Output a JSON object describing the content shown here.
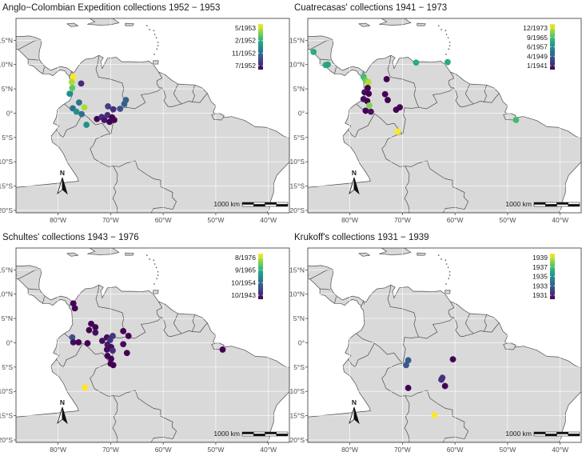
{
  "axes": {
    "lon_ticks": [
      "80°W",
      "70°W",
      "60°W",
      "50°W",
      "40°W"
    ],
    "lon_values": [
      -80,
      -70,
      -60,
      -50,
      -40
    ],
    "lat_ticks": [
      "15°N",
      "10°N",
      "5°N",
      "0°",
      "5°S",
      "10°S",
      "15°S",
      "20°S"
    ],
    "lat_values": [
      15,
      10,
      5,
      0,
      -5,
      -10,
      -15,
      -20
    ],
    "extent": {
      "lon_min": -88,
      "lon_max": -36,
      "lat_min": -20.5,
      "lat_max": 19.5
    }
  },
  "scale_bar": "1000 km",
  "north_arrow": "N",
  "colors": {
    "water": "#ffffff",
    "land": "#d9d9d9",
    "border": "#4d4d4d"
  },
  "panels": [
    {
      "title": "Anglo−Colombian Expedition collections 1952 − 1953",
      "legend": [
        "5/1953",
        "2/1952",
        "11/1952",
        "7/1952"
      ],
      "points": [
        {
          "lon": -77.1,
          "lat": 7.5,
          "date": 1953.3
        },
        {
          "lon": -77.4,
          "lat": 6.4,
          "date": 1953.2
        },
        {
          "lon": -77.3,
          "lat": 5.2,
          "date": 1953.1
        },
        {
          "lon": -77.8,
          "lat": 4.0,
          "date": 1952.9
        },
        {
          "lon": -75.6,
          "lat": 6.1,
          "date": 1952.6
        },
        {
          "lon": -76.0,
          "lat": 2.2,
          "date": 1952.8
        },
        {
          "lon": -75.0,
          "lat": 1.2,
          "date": 1953.2
        },
        {
          "lon": -77.2,
          "lat": 1.0,
          "date": 1952.8
        },
        {
          "lon": -76.5,
          "lat": 0.3,
          "date": 1952.9
        },
        {
          "lon": -75.5,
          "lat": -0.2,
          "date": 1952.8
        },
        {
          "lon": -74.6,
          "lat": -2.4,
          "date": 1952.9
        },
        {
          "lon": -72.6,
          "lat": -1.2,
          "date": 1952.5
        },
        {
          "lon": -71.7,
          "lat": -0.8,
          "date": 1952.6
        },
        {
          "lon": -71.2,
          "lat": -1.4,
          "date": 1952.55
        },
        {
          "lon": -70.6,
          "lat": -0.4,
          "date": 1952.6
        },
        {
          "lon": -70.2,
          "lat": -1.8,
          "date": 1952.5
        },
        {
          "lon": -69.7,
          "lat": -0.9,
          "date": 1952.5
        },
        {
          "lon": -69.5,
          "lat": 0.8,
          "date": 1952.6
        },
        {
          "lon": -70.5,
          "lat": 1.4,
          "date": 1952.65
        },
        {
          "lon": -68.2,
          "lat": 0.9,
          "date": 1952.7
        },
        {
          "lon": -67.4,
          "lat": 1.9,
          "date": 1952.75
        },
        {
          "lon": -67.1,
          "lat": 2.7,
          "date": 1952.75
        },
        {
          "lon": -69.3,
          "lat": -1.4,
          "date": 1952.5
        }
      ]
    },
    {
      "title": "Cuatrecasas' collections 1941 − 1973",
      "legend": [
        "12/1973",
        "9/1965",
        "6/1957",
        "4/1949",
        "1/1941"
      ],
      "points": [
        {
          "lon": -86.9,
          "lat": 12.6,
          "date": 1958
        },
        {
          "lon": -84.6,
          "lat": 9.9,
          "date": 1958
        },
        {
          "lon": -84.2,
          "lat": 10.0,
          "date": 1957
        },
        {
          "lon": -77.4,
          "lat": 7.5,
          "date": 1960
        },
        {
          "lon": -77.0,
          "lat": 6.7,
          "date": 1962
        },
        {
          "lon": -76.5,
          "lat": 6.4,
          "date": 1965
        },
        {
          "lon": -76.6,
          "lat": 5.2,
          "date": 1942
        },
        {
          "lon": -77.2,
          "lat": 4.3,
          "date": 1943
        },
        {
          "lon": -76.4,
          "lat": 4.0,
          "date": 1942
        },
        {
          "lon": -77.4,
          "lat": 2.9,
          "date": 1943
        },
        {
          "lon": -76.7,
          "lat": 2.5,
          "date": 1942
        },
        {
          "lon": -76.3,
          "lat": 1.6,
          "date": 1963
        },
        {
          "lon": -77.0,
          "lat": 0.5,
          "date": 1942
        },
        {
          "lon": -76.0,
          "lat": 0.3,
          "date": 1943
        },
        {
          "lon": -73.3,
          "lat": 3.9,
          "date": 1942
        },
        {
          "lon": -72.8,
          "lat": 2.7,
          "date": 1942
        },
        {
          "lon": -73.0,
          "lat": 7.0,
          "date": 1942
        },
        {
          "lon": -71.2,
          "lat": 0.7,
          "date": 1942
        },
        {
          "lon": -70.5,
          "lat": 1.2,
          "date": 1942
        },
        {
          "lon": -70.9,
          "lat": -3.8,
          "date": 1968
        },
        {
          "lon": -67.4,
          "lat": 10.4,
          "date": 1958
        },
        {
          "lon": -61.4,
          "lat": 10.5,
          "date": 1958
        },
        {
          "lon": -48.4,
          "lat": -1.4,
          "date": 1960
        }
      ]
    },
    {
      "title": "Schultes' collections 1943 − 1976",
      "legend": [
        "8/1976",
        "9/1965",
        "10/1954",
        "10/1943"
      ],
      "points": [
        {
          "lon": -77.1,
          "lat": 8.1,
          "date": 1944
        },
        {
          "lon": -76.8,
          "lat": 7.1,
          "date": 1944
        },
        {
          "lon": -73.7,
          "lat": 3.9,
          "date": 1944
        },
        {
          "lon": -74.1,
          "lat": 2.6,
          "date": 1944
        },
        {
          "lon": -72.9,
          "lat": 3.2,
          "date": 1944
        },
        {
          "lon": -72.9,
          "lat": 2.1,
          "date": 1945
        },
        {
          "lon": -77.3,
          "lat": 1.1,
          "date": 1952
        },
        {
          "lon": -77.1,
          "lat": 0.1,
          "date": 1945
        },
        {
          "lon": -76.1,
          "lat": 0.1,
          "date": 1944
        },
        {
          "lon": -74.4,
          "lat": -0.1,
          "date": 1944
        },
        {
          "lon": -71.6,
          "lat": 0.4,
          "date": 1945
        },
        {
          "lon": -70.7,
          "lat": 1.1,
          "date": 1945
        },
        {
          "lon": -70.1,
          "lat": 0.6,
          "date": 1949
        },
        {
          "lon": -69.6,
          "lat": 1.4,
          "date": 1949
        },
        {
          "lon": -70.6,
          "lat": -0.4,
          "date": 1946
        },
        {
          "lon": -69.9,
          "lat": -0.9,
          "date": 1945
        },
        {
          "lon": -70.7,
          "lat": -1.4,
          "date": 1945
        },
        {
          "lon": -69.6,
          "lat": -1.6,
          "date": 1948
        },
        {
          "lon": -70.6,
          "lat": -2.7,
          "date": 1944
        },
        {
          "lon": -69.9,
          "lat": -3.3,
          "date": 1944
        },
        {
          "lon": -70.0,
          "lat": -4.3,
          "date": 1944
        },
        {
          "lon": -69.5,
          "lat": -4.6,
          "date": 1944
        },
        {
          "lon": -66.6,
          "lat": 1.4,
          "date": 1944
        },
        {
          "lon": -67.6,
          "lat": 2.4,
          "date": 1944
        },
        {
          "lon": -67.6,
          "lat": -0.3,
          "date": 1945
        },
        {
          "lon": -66.9,
          "lat": -2.1,
          "date": 1944
        },
        {
          "lon": -48.7,
          "lat": -1.4,
          "date": 1944
        },
        {
          "lon": -74.9,
          "lat": -9.2,
          "date": 1976
        }
      ]
    },
    {
      "title": "Krukoff's collections 1931 − 1939",
      "legend": [
        "1939",
        "1937",
        "1935",
        "1933",
        "1931"
      ],
      "points": [
        {
          "lon": -68.9,
          "lat": -3.6,
          "date": 1934
        },
        {
          "lon": -69.3,
          "lat": -4.6,
          "date": 1934
        },
        {
          "lon": -60.4,
          "lat": -3.4,
          "date": 1932
        },
        {
          "lon": -62.4,
          "lat": -7.2,
          "date": 1933
        },
        {
          "lon": -62.6,
          "lat": -7.6,
          "date": 1933
        },
        {
          "lon": -68.9,
          "lat": -9.3,
          "date": 1932
        },
        {
          "lon": -61.9,
          "lat": -8.9,
          "date": 1932
        },
        {
          "lon": -63.9,
          "lat": -14.9,
          "date": 1939
        }
      ]
    }
  ]
}
